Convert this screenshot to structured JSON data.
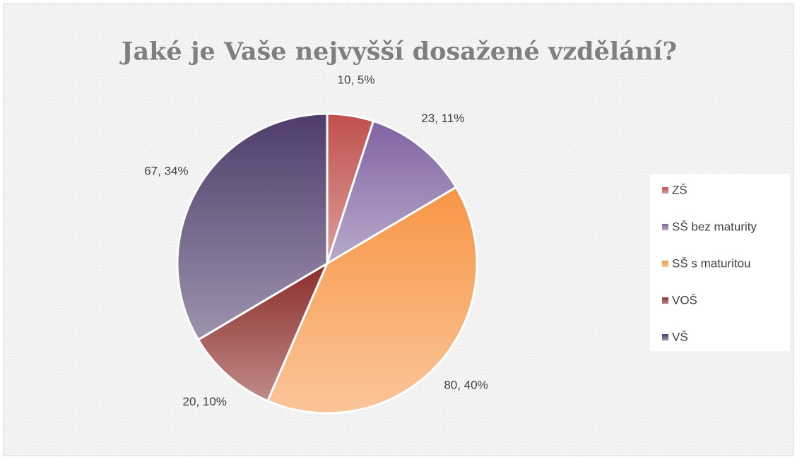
{
  "chart_data": {
    "type": "pie",
    "title": "Jaké je Vaše nejvyšší dosažené vzdělání?",
    "categories": [
      "ZŠ",
      "SŠ bez maturity",
      "SŠ s maturitou",
      "VOŠ",
      "VŠ"
    ],
    "values": [
      10,
      23,
      80,
      20,
      67
    ],
    "value_labels": [
      "10, 5%",
      "23, 11%",
      "80, 40%",
      "20, 10%",
      "67, 34%"
    ],
    "colors": [
      "#c0504d",
      "#8064a2",
      "#f79646",
      "#8b2c29",
      "#4f3c6b"
    ],
    "legend": "right"
  }
}
